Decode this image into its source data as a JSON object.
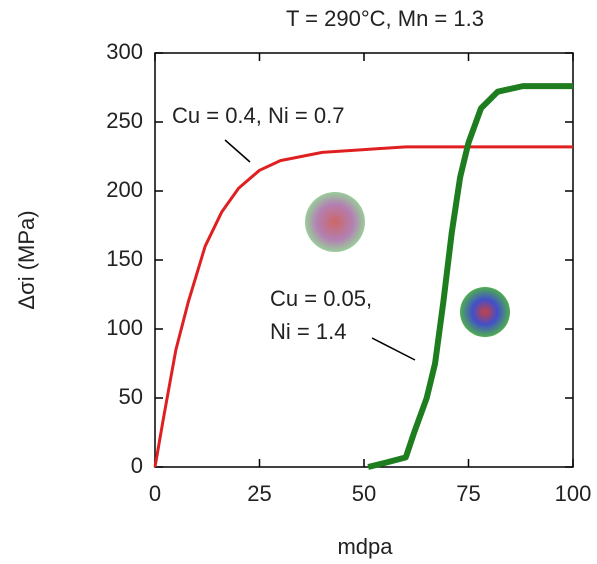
{
  "chart_data": {
    "type": "line",
    "title": "T = 290°C, Mn = 1.3",
    "x_label": "mdpa",
    "y_label": "Δσi (MPa)",
    "xlim": [
      0,
      100
    ],
    "xticks": [
      0,
      25,
      50,
      75,
      100
    ],
    "ylim": [
      0,
      300
    ],
    "yticks": [
      0,
      50,
      100,
      150,
      200,
      250,
      300
    ],
    "series": [
      {
        "name": "Cu = 0.4, Ni = 0.7",
        "color": "#e02020",
        "x": [
          0,
          2,
          5,
          8,
          12,
          16,
          20,
          25,
          30,
          40,
          50,
          60,
          70,
          100
        ],
        "values": [
          0,
          35,
          85,
          120,
          160,
          185,
          202,
          215,
          222,
          228,
          230,
          232,
          232,
          232
        ]
      },
      {
        "name": "Cu = 0.05, Ni = 1.4",
        "color": "#1e7d1e",
        "x": [
          51,
          55,
          60,
          62,
          65,
          67,
          69,
          71,
          73,
          75,
          78,
          82,
          88,
          100
        ],
        "values": [
          0,
          3,
          7,
          25,
          50,
          75,
          120,
          170,
          210,
          235,
          260,
          272,
          276,
          276
        ]
      }
    ],
    "annotations": [
      [
        "Cu = 0.4, Ni = 0.7"
      ],
      [
        "Cu = 0.05,",
        "Ni = 1.4"
      ]
    ]
  }
}
